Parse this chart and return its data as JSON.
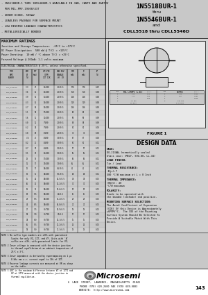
{
  "title_left_lines": [
    "- 1N5518BUR-1 THRU 1N5546BUR-1 AVAILABLE IN JAN, JANTX AND JANTXV",
    "  PER MIL-PRF-19500/437",
    "- ZENER DIODE, 500mW",
    "- LEADLESS PACKAGE FOR SURFACE MOUNT",
    "- LOW REVERSE LEAKAGE CHARACTERISTICS",
    "- METALLURGICALLY BONDED"
  ],
  "title_right_lines": [
    "1N5518BUR-1",
    "thru",
    "1N5546BUR-1",
    "and",
    "CDLL5518 thru CDLL5546D"
  ],
  "max_ratings_title": "MAXIMUM RATINGS",
  "max_ratings_lines": [
    "Junction and Storage Temperature:  -65°C to +175°C",
    "DC Power Dissipation:  500 mW @ T(C) = +125°C",
    "Power Derating:  10 mW / °C above T(C) = +25°C",
    "Forward Voltage @ 200mA: 1.1 volts maximum"
  ],
  "elec_char_title": "ELECTRICAL CHARACTERISTICS @ 25°C, unless otherwise specified.",
  "table_header_row1": [
    "TYPE",
    "NOMINAL",
    "ZENER",
    "MAX ZENER",
    "MAXIMUM REVERSE",
    "REGULA-",
    "MAX"
  ],
  "table_header_row2": [
    "PART",
    "ZENER",
    "TEST",
    "IMPEDANCE",
    "LEAKAGE CURRENT",
    "TION",
    "FORWARD"
  ],
  "table_header_row3": [
    "NUMBER",
    "VOLTAGE",
    "CURRENT",
    "ZZT/ZZK",
    "IR",
    "CURRENT",
    "CURRENT"
  ],
  "table_header_row4": [
    "",
    "(VOLTS)",
    "(mA)",
    "(OHMS AT)",
    "VR    mA",
    "IZM",
    "IF"
  ],
  "table_header_row5": [
    "",
    "",
    "",
    "IZT   IZK",
    "(VOLTS A) (µA)",
    "(mA A)",
    "(mA)"
  ],
  "col_names": [
    "CDLL/JAN",
    "VZ",
    "IZT",
    "ZZT",
    "ZZK",
    "VR",
    "IR",
    "IZM",
    "IF",
    "VF"
  ],
  "table_rows": [
    [
      "CDLL/JAN5518",
      "3.3",
      "76",
      "10",
      "400",
      "1.0",
      "0.5",
      "170",
      "170",
      "0.07"
    ],
    [
      "CDLL/JAN5519",
      "3.6",
      "56",
      "12",
      "400",
      "1.0",
      "0.5",
      "158",
      "158",
      "0.08"
    ],
    [
      "CDLL/JAN5520",
      "3.9",
      "51",
      "15",
      "400",
      "1.0",
      "0.5",
      "128",
      "128",
      "0.08"
    ],
    [
      "CDLL/JAN5521",
      "4.3",
      "46",
      "18",
      "400",
      "1.0",
      "0.5",
      "119",
      "119",
      "0.08"
    ],
    [
      "CDLL/JAN5522",
      "4.7",
      "42",
      "18",
      "400",
      "1.0",
      "0.5",
      "106",
      "106",
      "0.09"
    ],
    [
      "CDLL/JAN5523",
      "5.1",
      "39",
      "17",
      "400",
      "1.0",
      "0.5",
      "98",
      "98",
      "0.09"
    ],
    [
      "CDLL/JAN5524",
      "5.6",
      "35",
      "11",
      "400",
      "1.0",
      "0.5",
      "89",
      "89",
      "0.09"
    ],
    [
      "CDLL/JAN5525",
      "6.0",
      "35",
      "7",
      "400",
      "1.0",
      "0.5",
      "83",
      "83",
      "0.09"
    ],
    [
      "CDLL/JAN5526",
      "6.2",
      "32",
      "7",
      "400",
      "2.0",
      "0.5",
      "81",
      "81",
      "0.10"
    ],
    [
      "CDLL/JAN5527",
      "6.8",
      "29",
      "5",
      "400",
      "2.0",
      "0.5",
      "74",
      "74",
      "0.10"
    ],
    [
      "CDLL/JAN5528",
      "7.5",
      "27",
      "6",
      "400",
      "3.0",
      "0.5",
      "67",
      "67",
      "0.10"
    ],
    [
      "CDLL/JAN5529",
      "8.2",
      "25",
      "8",
      "400",
      "3.0",
      "0.5",
      "61",
      "61",
      "0.11"
    ],
    [
      "CDLL/JAN5530",
      "8.7",
      "23",
      "8",
      "400",
      "5.0",
      "0.5",
      "57",
      "57",
      "0.11"
    ],
    [
      "CDLL/JAN5531",
      "9.1",
      "22",
      "10",
      "400",
      "5.0",
      "0.5",
      "55",
      "55",
      "0.11"
    ],
    [
      "CDLL/JAN5532",
      "10",
      "19",
      "17",
      "400",
      "7.0",
      "0.5",
      "50",
      "50",
      "0.11"
    ],
    [
      "CDLL/JAN5533",
      "11",
      "17",
      "22",
      "400",
      "7.0",
      "0.5",
      "45",
      "45",
      "0.11"
    ],
    [
      "CDLL/JAN5534",
      "12",
      "17",
      "30",
      "400",
      "8.4",
      "0.5",
      "41",
      "41",
      "0.11"
    ],
    [
      "CDLL/JAN5535",
      "13",
      "15",
      "33",
      "400",
      "9.1",
      "0.5",
      "38",
      "38",
      "0.11"
    ],
    [
      "CDLL/JAN5536",
      "15",
      "14",
      "30",
      "600",
      "10.5",
      "0.5",
      "33",
      "33",
      "0.13"
    ],
    [
      "CDLL/JAN5537",
      "16",
      "12",
      "30",
      "600",
      "11.2",
      "0.5",
      "31",
      "31",
      "0.13"
    ],
    [
      "CDLL/JAN5538",
      "18",
      "11",
      "30",
      "600",
      "12.6",
      "0.5",
      "28",
      "28",
      "0.13"
    ],
    [
      "CDLL/JAN5539",
      "20",
      "9.5",
      "30",
      "600",
      "14",
      "0.5",
      "25",
      "25",
      "0.13"
    ],
    [
      "CDLL/JAN5540",
      "22",
      "9.5",
      "30",
      "600",
      "15.4",
      "0.5",
      "23",
      "23",
      "0.13"
    ],
    [
      "CDLL/JAN5541",
      "24",
      "8.5",
      "30",
      "600",
      "16.8",
      "0.5",
      "21",
      "21",
      "0.13"
    ],
    [
      "CDLL/JAN5542",
      "27",
      "7.5",
      "70",
      "700",
      "18.9",
      "0.5",
      "19",
      "19",
      "0.13"
    ],
    [
      "CDLL/JAN5543",
      "30",
      "7.0",
      "70",
      "700",
      "21",
      "0.5",
      "17",
      "17",
      "0.13"
    ],
    [
      "CDLL/JAN5544",
      "33",
      "6.0",
      "70",
      "700",
      "23.1",
      "0.5",
      "15",
      "15",
      "0.13"
    ],
    [
      "CDLL/JAN5545",
      "36",
      "5.5",
      "70",
      "700",
      "25.2",
      "0.5",
      "14",
      "14",
      "0.13"
    ],
    [
      "CDLL/JAN5546",
      "39",
      "5.0",
      "70",
      "700",
      "27.3",
      "0.5",
      "13",
      "13",
      "0.13"
    ]
  ],
  "notes": [
    [
      "NOTE 1",
      "No suffix type numbers are ±20% with guaranteed limits for only VZ, IZT, and VF. Units with 'A' suffix are ±10%, with guaranteed limits for VZ, IZT, and IZM. Units with guaranteed limits for all six parameters are indicated by a 'B' suffix for ±2.0% units, 'C' suffix for ±1.0%, and 'D' suffix for ±1.0%."
    ],
    [
      "NOTE 2",
      "Zener voltage is measured with the device junction in thermal equilibrium at an ambient temperature of 25°C ± 3°C."
    ],
    [
      "NOTE 3",
      "Zener impedance is derived by superimposing on 1 µs 8 kHz rms a.c. current equal to 10% of IZT."
    ],
    [
      "NOTE 4",
      "Reverse leakage currents are measured at VR as shown on the table."
    ],
    [
      "NOTE 5",
      "ΔVZ is the maximum difference between VZ at IZT1 and VZ at IZT2 measured with the device junction in thermal equilibrium."
    ]
  ],
  "design_data_sections": [
    [
      "CASE:",
      " DO-213AA, hermetically sealed\nGlass case: (MELF, SOD-80, LL-34)"
    ],
    [
      "LEAD FINISH:",
      " Tin / Lead"
    ],
    [
      "THERMAL RESISTANCE:",
      " (θjc):7\n300 °C/W maximum at L = 0 Inch"
    ],
    [
      "THERMAL IMPEDANCE:",
      " (θQJC): 40\n°C/W maximum"
    ],
    [
      "POLARITY:",
      " Diode to be operated with\nthe banded (cathode) end positive."
    ],
    [
      "MOUNTING SURFACE SELECTION:",
      "\nThe Axial Coefficient of Expansion\n(COE) Of this Device is Approximately\n≈6PPM/°C.  The COE of the Mounting\nSurface System Should Be Selected To\nProvide A Suitable Match With This\nDevice."
    ]
  ],
  "figure_label": "FIGURE 1",
  "design_data_label": "DESIGN DATA",
  "footer_name": "Microsemi",
  "footer_address": "6  LAKE  STREET,  LAWRENCE,  MASSACHUSETTS  01841",
  "footer_phone": "PHONE (978) 620-2600",
  "footer_fax": "FAX (978) 689-0803",
  "footer_website": "WEBSITE:  http://www.microsemi.com",
  "footer_page": "143",
  "bg_gray": "#c8c8c8",
  "white": "#ffffff",
  "panel_gray": "#d8d8d8",
  "right_panel_bg": "#e0e0e0"
}
